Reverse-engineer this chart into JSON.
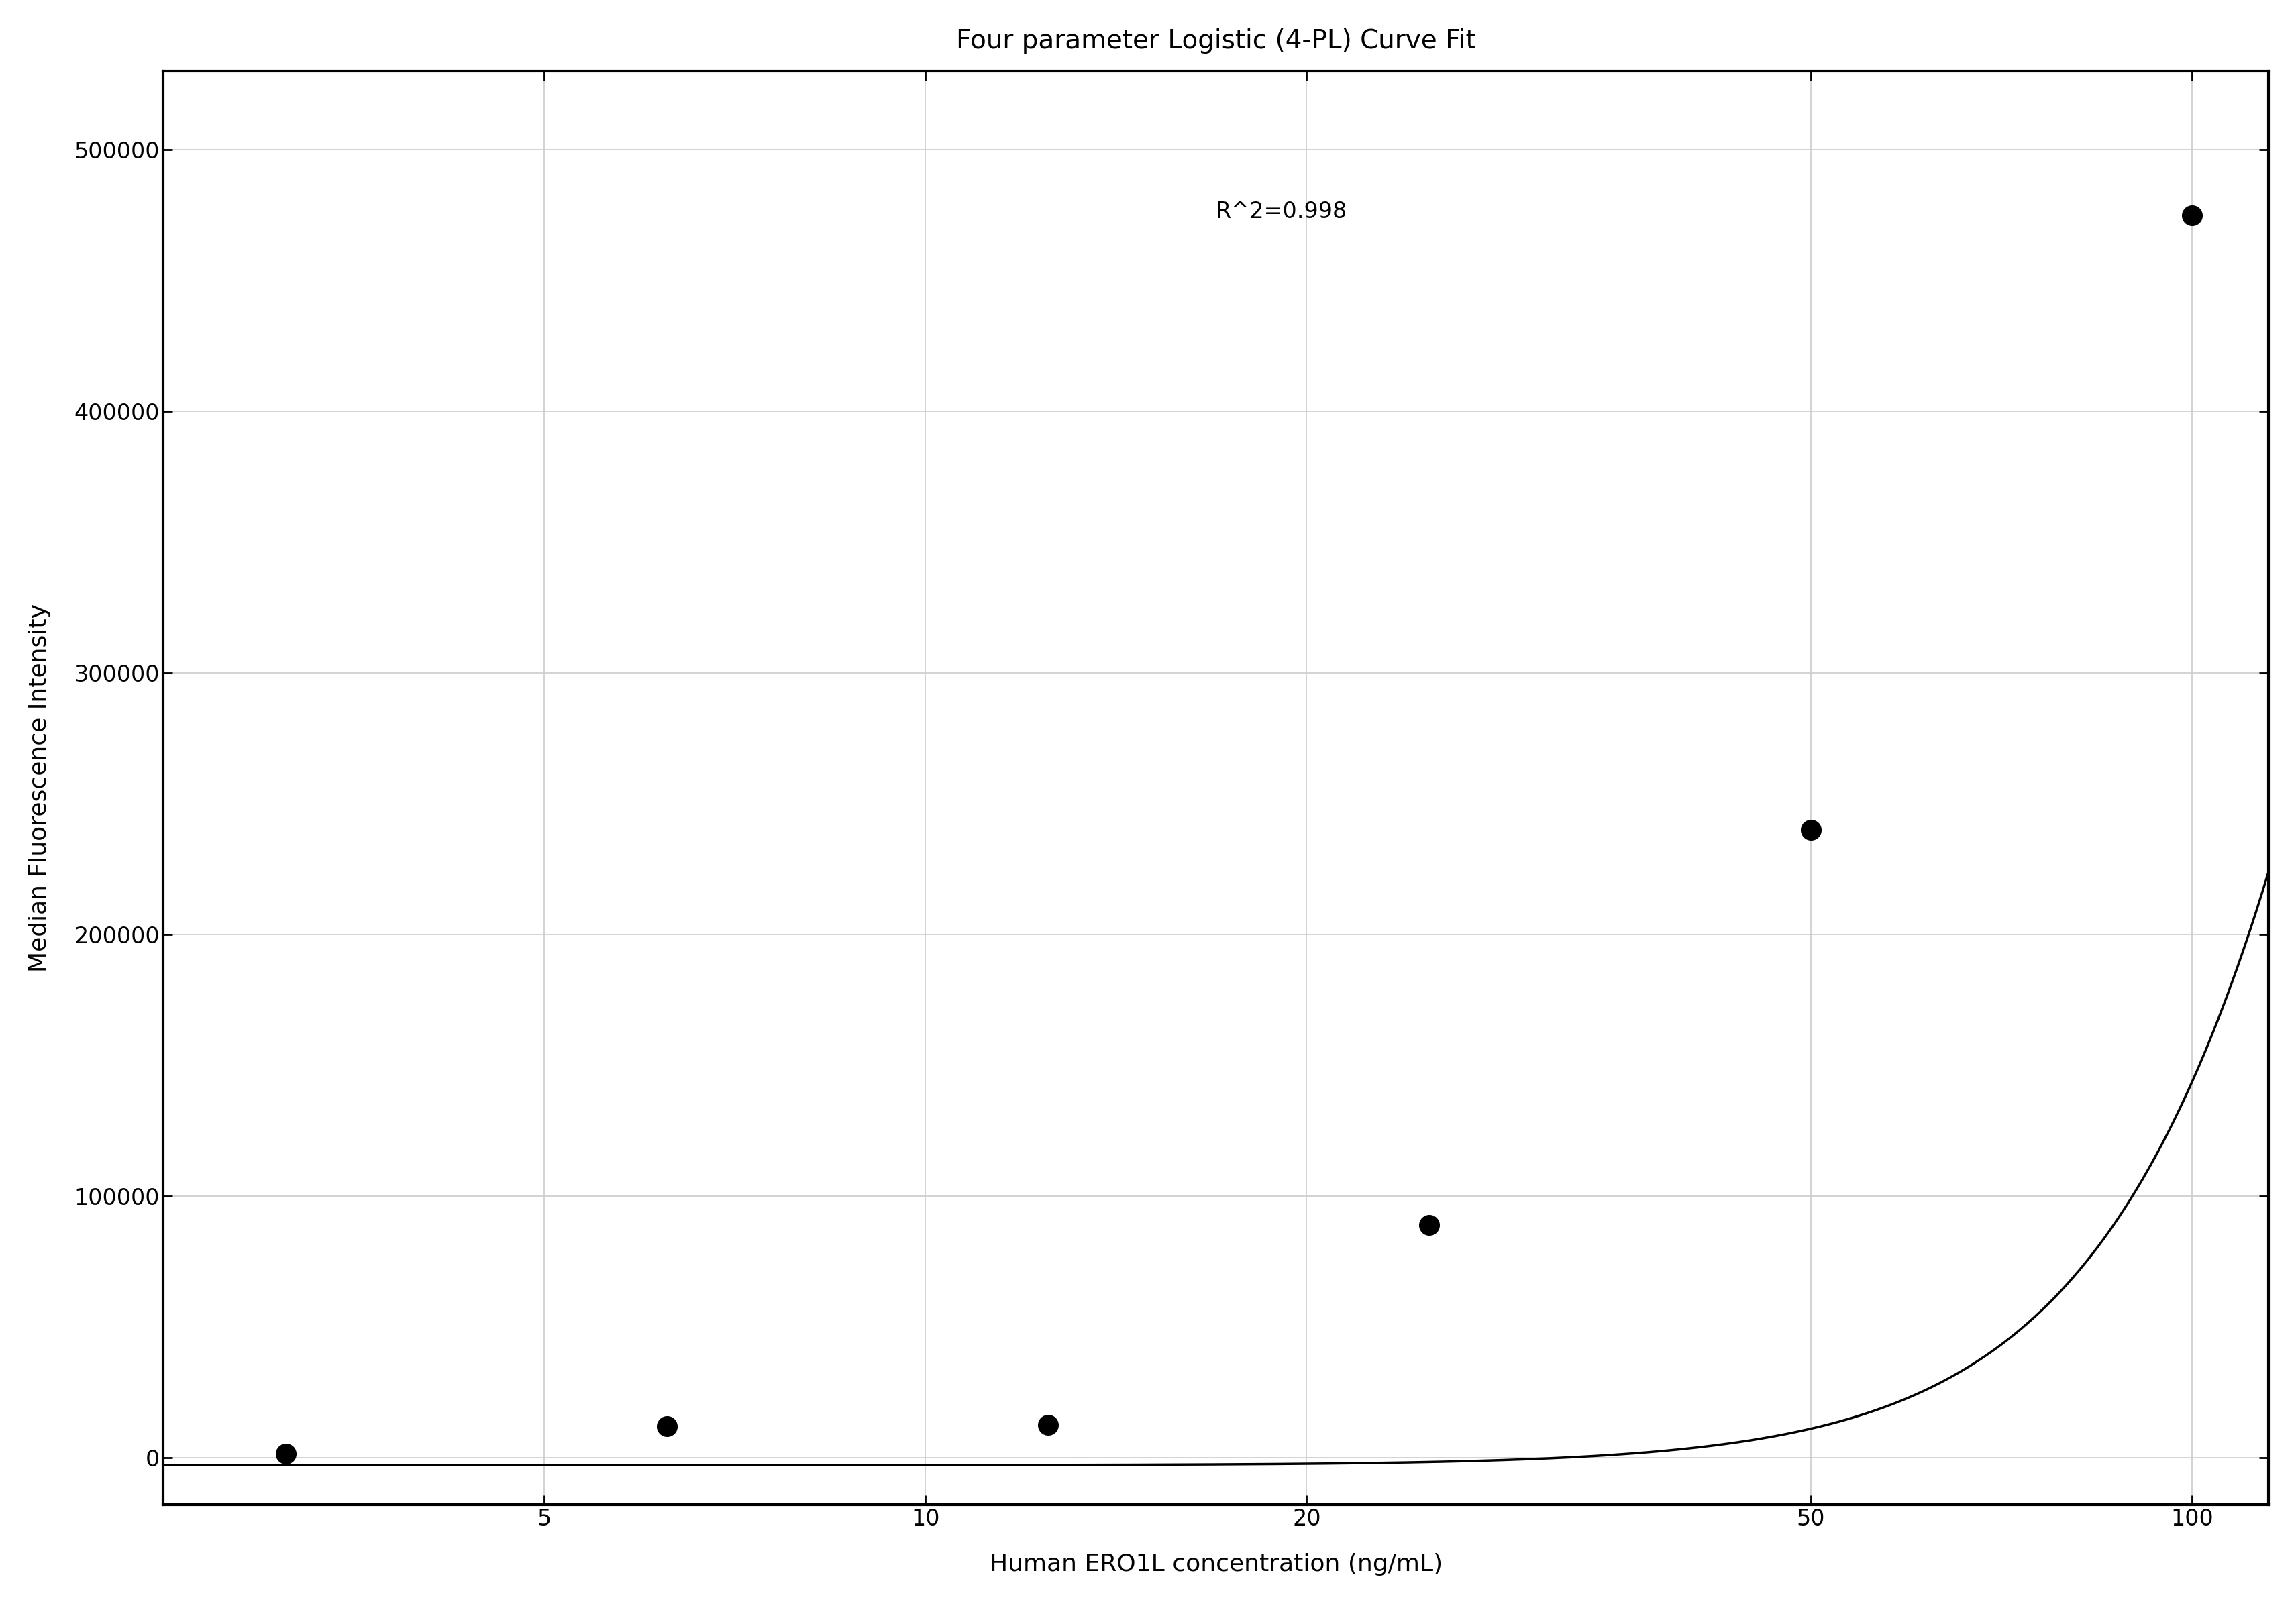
{
  "title": "Four parameter Logistic (4-PL) Curve Fit",
  "xlabel": "Human ERO1L concentration (ng/mL)",
  "ylabel": "Median Fluorescence Intensity",
  "annotation": "R^2=0.998",
  "scatter_x": [
    3.125,
    6.25,
    12.5,
    25,
    50,
    100
  ],
  "scatter_y": [
    1500,
    12000,
    12500,
    89000,
    240000,
    475000
  ],
  "xlim_log": [
    2.5,
    115
  ],
  "ylim": [
    -18000,
    530000
  ],
  "yticks": [
    0,
    100000,
    200000,
    300000,
    400000,
    500000
  ],
  "xticks": [
    5,
    10,
    20,
    50,
    100
  ],
  "grid_color": "#cccccc",
  "point_color": "#000000",
  "line_color": "#000000",
  "bg_color": "#ffffff",
  "title_fontsize": 28,
  "label_fontsize": 26,
  "tick_fontsize": 24,
  "annotation_fontsize": 24,
  "4pl_A": -3000,
  "4pl_B": 3.5,
  "4pl_C": 200,
  "4pl_D": 1800000
}
